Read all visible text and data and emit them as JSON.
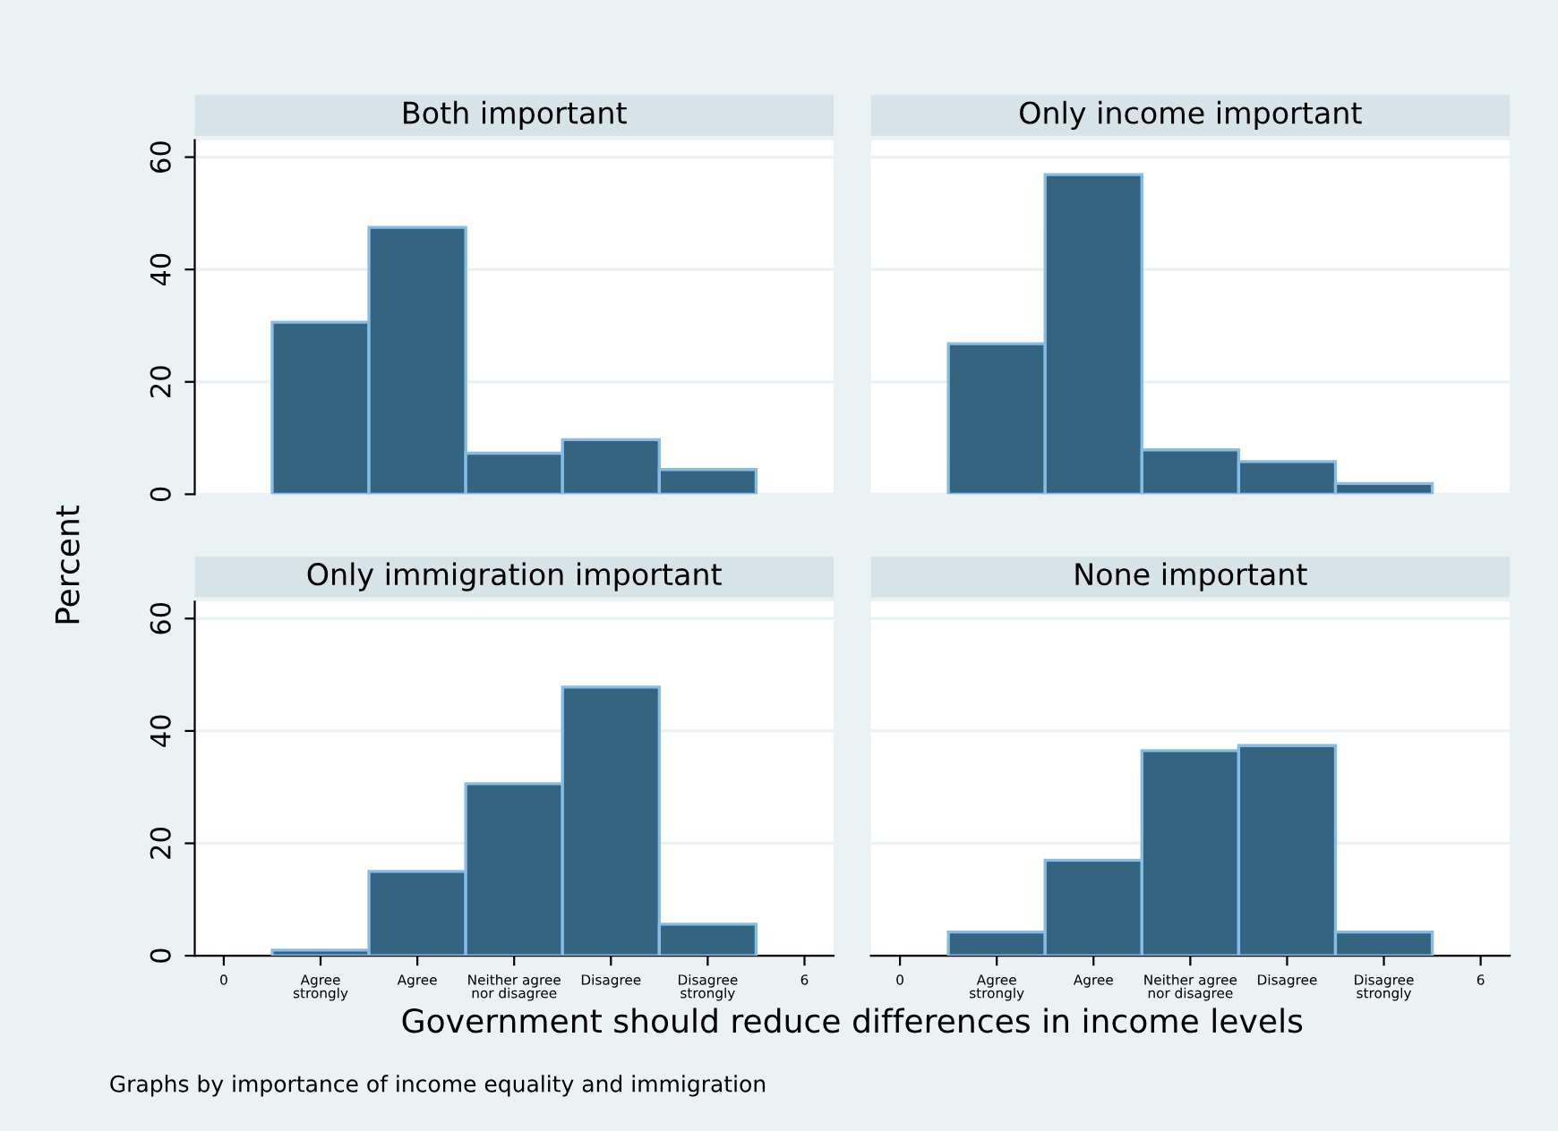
{
  "chart_data": [
    {
      "type": "histogram",
      "title": "Both important",
      "ylabel": "Percent",
      "bins": [
        0.5,
        1.5,
        2.5,
        3.5,
        4.5,
        5.5
      ],
      "values": [
        30.6,
        47.5,
        7.3,
        9.7,
        4.4
      ],
      "color": "#356480",
      "xlim": [
        -0.3,
        6.3
      ],
      "ylim": [
        0,
        63
      ],
      "yticks": [
        0,
        20,
        40,
        60
      ],
      "grid": "y",
      "tick_labels": "y"
    },
    {
      "type": "histogram",
      "title": "Only income important",
      "bins": [
        0.5,
        1.5,
        2.5,
        3.5,
        4.5,
        5.5
      ],
      "values": [
        26.8,
        56.9,
        7.9,
        5.8,
        1.9
      ],
      "color": "#356480",
      "xlim": [
        -0.3,
        6.3
      ],
      "ylim": [
        0,
        63
      ],
      "yticks": [
        0,
        20,
        40,
        60
      ],
      "grid": "y",
      "tick_labels": false
    },
    {
      "type": "histogram",
      "title": "Only immigration important",
      "xlabel": "Government should reduce differences in income levels",
      "bins": [
        0.5,
        1.5,
        2.5,
        3.5,
        4.5,
        5.5
      ],
      "values": [
        1.0,
        15.0,
        30.6,
        47.8,
        5.6
      ],
      "color": "#356480",
      "xlim": [
        -0.3,
        6.3
      ],
      "ylim": [
        0,
        63
      ],
      "xticks": [
        0,
        {
          "value": 1,
          "label": "Agree strongly"
        },
        {
          "value": 2,
          "label": "Agree"
        },
        {
          "value": 3,
          "label": "Neither agree nor disagree"
        },
        {
          "value": 4,
          "label": "Disagree"
        },
        {
          "value": 5,
          "label": "Disagree strongly"
        },
        6
      ],
      "yticks": [
        0,
        20,
        40,
        60
      ],
      "grid": "y"
    },
    {
      "type": "histogram",
      "title": "None important",
      "bins": [
        0.5,
        1.5,
        2.5,
        3.5,
        4.5,
        5.5
      ],
      "values": [
        4.2,
        17.0,
        36.5,
        37.4,
        4.2
      ],
      "color": "#356480",
      "xlim": [
        -0.3,
        6.3
      ],
      "ylim": [
        0,
        63
      ],
      "xticks": [
        0,
        {
          "value": 1,
          "label": "Agree strongly"
        },
        {
          "value": 2,
          "label": "Agree"
        },
        {
          "value": 3,
          "label": "Neither agree nor disagree"
        },
        {
          "value": 4,
          "label": "Disagree"
        },
        {
          "value": 5,
          "label": "Disagree strongly"
        },
        6
      ],
      "yticks": [
        0,
        20,
        40,
        60
      ],
      "grid": "y",
      "tick_labels": "x",
      "annotations": [
        "Graphs by importance of income equality and immigration"
      ]
    }
  ]
}
